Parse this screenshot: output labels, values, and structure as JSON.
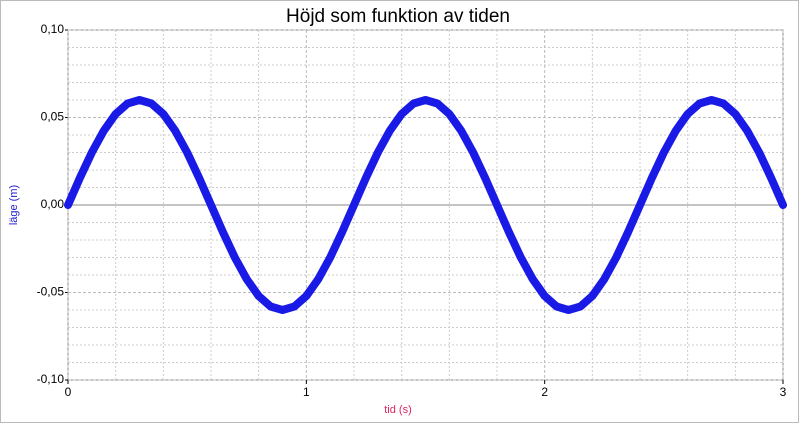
{
  "chart_data": {
    "type": "line",
    "title": "Höjd som funktion av tiden",
    "x_label": "tid (s)",
    "y_label": "läge (m)",
    "xlim": [
      0,
      3
    ],
    "ylim": [
      -0.1,
      0.1
    ],
    "xticks": [
      0,
      1,
      2,
      3
    ],
    "yticks": [
      {
        "value": 0.1,
        "label": "0,10"
      },
      {
        "value": 0.05,
        "label": "0,05"
      },
      {
        "value": 0,
        "label": "0,00"
      },
      {
        "value": -0.05,
        "label": "-0,05"
      },
      {
        "value": -0.1,
        "label": "-0,10"
      }
    ],
    "x_minor_grid": [
      0.2,
      0.4,
      0.6,
      0.8,
      1.2,
      1.4,
      1.6,
      1.8,
      2.2,
      2.4,
      2.6,
      2.8
    ],
    "y_minor_grid": [
      0.09,
      0.08,
      0.07,
      0.06,
      0.04,
      0.03,
      0.02,
      0.01,
      -0.01,
      -0.02,
      -0.03,
      -0.04,
      -0.06,
      -0.07,
      -0.08,
      -0.09
    ],
    "grid": true,
    "x": [
      0,
      0.05,
      0.1,
      0.15,
      0.2,
      0.25,
      0.3,
      0.35,
      0.4,
      0.45,
      0.5,
      0.55,
      0.6,
      0.65,
      0.7,
      0.75,
      0.8,
      0.85,
      0.9,
      0.95,
      1,
      1.05,
      1.1,
      1.15,
      1.2,
      1.25,
      1.3,
      1.35,
      1.4,
      1.45,
      1.5,
      1.55,
      1.6,
      1.65,
      1.7,
      1.75,
      1.8,
      1.85,
      1.9,
      1.95,
      2,
      2.05,
      2.1,
      2.15,
      2.2,
      2.25,
      2.3,
      2.35,
      2.4,
      2.45,
      2.5,
      2.55,
      2.6,
      2.65,
      2.7,
      2.75,
      2.8,
      2.85,
      2.9,
      2.95,
      3
    ],
    "series": [
      {
        "color": "#1a1ae6",
        "values": [
          0,
          0.0155,
          0.03,
          0.0424,
          0.052,
          0.058,
          0.06,
          0.058,
          0.052,
          0.0424,
          0.03,
          0.0155,
          0,
          -0.0155,
          -0.03,
          -0.0424,
          -0.052,
          -0.058,
          -0.06,
          -0.058,
          -0.052,
          -0.0424,
          -0.03,
          -0.0155,
          0,
          0.0155,
          0.03,
          0.0424,
          0.052,
          0.058,
          0.06,
          0.058,
          0.052,
          0.0424,
          0.03,
          0.0155,
          0,
          -0.0155,
          -0.03,
          -0.0424,
          -0.052,
          -0.058,
          -0.06,
          -0.058,
          -0.052,
          -0.0424,
          -0.03,
          -0.0155,
          0,
          0.0155,
          0.03,
          0.0424,
          0.052,
          0.058,
          0.06,
          0.058,
          0.052,
          0.0424,
          0.03,
          0.0155,
          0
        ]
      }
    ]
  }
}
